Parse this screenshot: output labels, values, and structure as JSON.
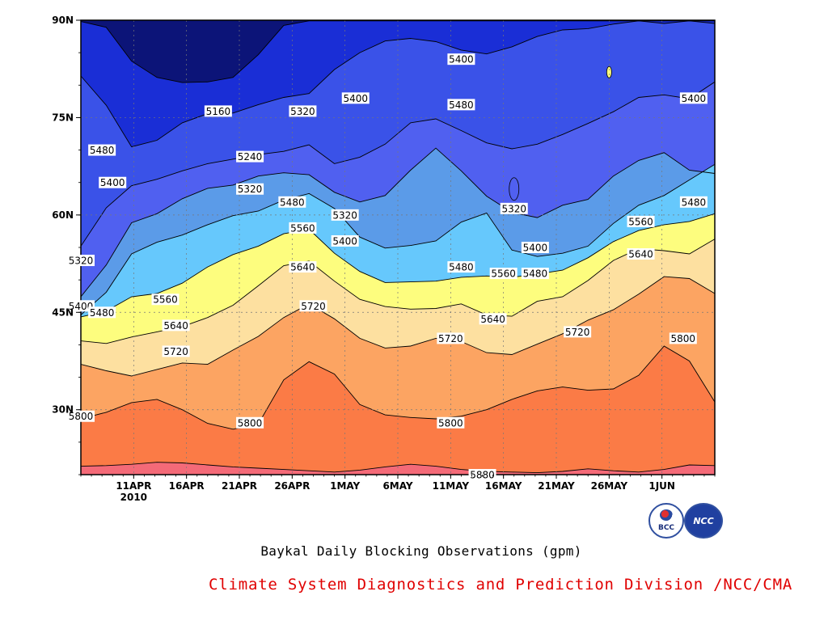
{
  "chart_data": {
    "type": "heatmap",
    "subtype": "filled contour (Hovmoller diagram)",
    "title": "Baykal Daily Blocking Observations (gpm)",
    "xlabel": "",
    "ylabel": "",
    "x_ticks": [
      "11APR",
      "16APR",
      "21APR",
      "26APR",
      "1MAY",
      "6MAY",
      "11MAY",
      "16MAY",
      "21MAY",
      "26MAY",
      "1JUN"
    ],
    "x_year_label": "2010",
    "x_range": [
      "2010-04-06",
      "2010-06-05"
    ],
    "y_ticks": [
      "30N",
      "45N",
      "60N",
      "75N",
      "90N"
    ],
    "y_range": [
      20,
      90
    ],
    "grid": true,
    "contour_levels": [
      5160,
      5240,
      5320,
      5400,
      5480,
      5560,
      5640,
      5720,
      5800,
      5880
    ],
    "fill_colors": [
      "#0c1478",
      "#1a2ed6",
      "#3a52e8",
      "#5060f0",
      "#5b9be8",
      "#66c8fc",
      "#fdfd7e",
      "#fde0a0",
      "#fca462",
      "#fb7b46",
      "#f46a78",
      "#e8324a"
    ],
    "band_boundaries_deg": [
      {
        "level": 5880,
        "lat": [
          21.3,
          21.4,
          21.6,
          21.9,
          21.8,
          21.5,
          21.2,
          21.0,
          20.8,
          20.6,
          20.4,
          20.7,
          21.2,
          21.6,
          21.3,
          20.8,
          20.5,
          20.4,
          20.3,
          20.5,
          20.9,
          20.6,
          20.4,
          20.8,
          21.5,
          21.4
        ]
      },
      {
        "level": 5800,
        "lat": [
          28.6,
          29.6,
          31.1,
          31.6,
          30.0,
          27.9,
          27.0,
          27.8,
          34.6,
          37.4,
          35.5,
          30.8,
          29.2,
          28.8,
          28.6,
          29.0,
          30.0,
          31.6,
          32.9,
          33.5,
          33.0,
          33.2,
          35.3,
          39.8,
          37.5,
          31.2
        ]
      },
      {
        "level": 5720,
        "lat": [
          37.0,
          36.0,
          35.2,
          36.2,
          37.2,
          37.0,
          39.2,
          41.3,
          44.2,
          46.3,
          44.0,
          41.0,
          39.5,
          39.8,
          41.0,
          40.5,
          38.8,
          38.5,
          40.1,
          41.7,
          43.8,
          45.4,
          47.8,
          50.5,
          50.2,
          47.9
        ]
      },
      {
        "level": 5640,
        "lat": [
          40.6,
          40.2,
          41.2,
          42.0,
          42.8,
          44.2,
          46.1,
          49.1,
          52.2,
          52.9,
          49.8,
          47.0,
          45.9,
          45.5,
          45.6,
          46.3,
          44.6,
          44.4,
          46.7,
          47.4,
          49.9,
          53.0,
          54.8,
          54.5,
          54.0,
          56.3
        ]
      },
      {
        "level": 5560,
        "lat": [
          44.3,
          45.2,
          47.4,
          47.9,
          49.5,
          52.0,
          53.9,
          55.2,
          57.1,
          57.8,
          54.1,
          51.3,
          49.6,
          49.7,
          49.8,
          50.4,
          50.6,
          50.4,
          50.9,
          51.5,
          53.4,
          55.9,
          57.6,
          58.5,
          59.0,
          60.2
        ]
      },
      {
        "level": 5480,
        "lat": [
          44.6,
          48.1,
          54.0,
          55.8,
          56.9,
          58.5,
          59.9,
          60.6,
          62.3,
          63.3,
          61.0,
          56.6,
          54.9,
          55.3,
          56.0,
          58.9,
          60.3,
          54.6,
          53.6,
          54.1,
          55.2,
          58.7,
          61.5,
          63.0,
          65.4,
          67.8
        ]
      },
      {
        "level": 5400,
        "lat": [
          47.4,
          52.3,
          58.8,
          60.2,
          62.5,
          64.1,
          64.6,
          66.0,
          66.5,
          66.2,
          63.5,
          62.0,
          63.0,
          66.9,
          70.3,
          66.8,
          62.9,
          60.4,
          59.6,
          61.5,
          62.4,
          66.0,
          68.4,
          69.6,
          66.9,
          66.4
        ]
      },
      {
        "level": 5320,
        "lat": [
          55.2,
          61.1,
          64.5,
          65.5,
          66.8,
          67.9,
          68.6,
          69.3,
          69.8,
          70.8,
          67.9,
          68.9,
          70.9,
          74.2,
          74.8,
          73.0,
          71.1,
          70.2,
          70.9,
          72.4,
          74.1,
          75.9,
          78.1,
          78.5,
          77.9,
          80.5
        ]
      },
      {
        "level": 5240,
        "lat": [
          81.4,
          76.9,
          70.5,
          71.5,
          74.2,
          75.6,
          75.7,
          77.0,
          78.1,
          78.7,
          82.4,
          85.0,
          86.8,
          87.2,
          86.7,
          85.4,
          84.8,
          85.9,
          87.5,
          88.5,
          88.7,
          89.4,
          89.9,
          89.5,
          89.9,
          89.5
        ]
      },
      {
        "level": 5160,
        "lat": [
          89.8,
          88.9,
          83.7,
          81.2,
          80.4,
          80.5,
          81.2,
          84.7,
          89.2,
          89.9,
          89.9,
          89.9,
          89.9,
          89.9,
          89.9,
          89.9,
          89.9,
          89.9,
          89.9,
          89.9,
          89.9,
          89.9,
          89.9,
          89.9,
          89.9,
          89.9
        ]
      }
    ],
    "contour_labels": [
      {
        "text": "5160",
        "date": "2010-04-19",
        "lat": 76
      },
      {
        "text": "5240",
        "date": "2010-04-22",
        "lat": 69
      },
      {
        "text": "5320",
        "date": "2010-04-22",
        "lat": 64
      },
      {
        "text": "5320",
        "date": "2010-04-27",
        "lat": 76
      },
      {
        "text": "5400",
        "date": "2010-05-02",
        "lat": 78
      },
      {
        "text": "5400",
        "date": "2010-05-12",
        "lat": 84
      },
      {
        "text": "5480",
        "date": "2010-05-12",
        "lat": 77
      },
      {
        "text": "5400",
        "date": "2010-06-03",
        "lat": 78
      },
      {
        "text": "5480",
        "date": "2010-04-08",
        "lat": 70
      },
      {
        "text": "5400",
        "date": "2010-04-09",
        "lat": 65
      },
      {
        "text": "5480",
        "date": "2010-04-26",
        "lat": 62
      },
      {
        "text": "5320",
        "date": "2010-05-01",
        "lat": 60
      },
      {
        "text": "5320",
        "date": "2010-05-17",
        "lat": 61
      },
      {
        "text": "5480",
        "date": "2010-06-03",
        "lat": 62
      },
      {
        "text": "5560",
        "date": "2010-04-27",
        "lat": 58
      },
      {
        "text": "5400",
        "date": "2010-05-01",
        "lat": 56
      },
      {
        "text": "5560",
        "date": "2010-05-29",
        "lat": 59
      },
      {
        "text": "5400",
        "date": "2010-05-19",
        "lat": 55
      },
      {
        "text": "5320",
        "date": "2010-04-06",
        "lat": 53
      },
      {
        "text": "5640",
        "date": "2010-04-27",
        "lat": 52
      },
      {
        "text": "5480",
        "date": "2010-05-12",
        "lat": 52
      },
      {
        "text": "5560",
        "date": "2010-05-16",
        "lat": 51
      },
      {
        "text": "5480",
        "date": "2010-05-19",
        "lat": 51
      },
      {
        "text": "5640",
        "date": "2010-05-29",
        "lat": 54
      },
      {
        "text": "5400",
        "date": "2010-04-06",
        "lat": 46
      },
      {
        "text": "5560",
        "date": "2010-04-14",
        "lat": 47
      },
      {
        "text": "5480",
        "date": "2010-04-08",
        "lat": 45
      },
      {
        "text": "5720",
        "date": "2010-04-28",
        "lat": 46
      },
      {
        "text": "5640",
        "date": "2010-04-15",
        "lat": 43
      },
      {
        "text": "5640",
        "date": "2010-05-15",
        "lat": 44
      },
      {
        "text": "5720",
        "date": "2010-05-23",
        "lat": 42
      },
      {
        "text": "5720",
        "date": "2010-05-11",
        "lat": 41
      },
      {
        "text": "5800",
        "date": "2010-06-02",
        "lat": 41
      },
      {
        "text": "5720",
        "date": "2010-04-15",
        "lat": 39
      },
      {
        "text": "5800",
        "date": "2010-04-06",
        "lat": 29
      },
      {
        "text": "5800",
        "date": "2010-04-22",
        "lat": 28
      },
      {
        "text": "5800",
        "date": "2010-05-11",
        "lat": 28
      },
      {
        "text": "5880",
        "date": "2010-05-14",
        "lat": 20
      }
    ],
    "closed_features": [
      {
        "type": "high",
        "level": 5480,
        "center": [
          "2010-05-26",
          82
        ],
        "note": "small yellow island"
      },
      {
        "type": "low",
        "level": 5320,
        "center": [
          "2010-05-17",
          64
        ],
        "note": "small blue island"
      }
    ]
  },
  "caption": {
    "title": "Baykal Daily Blocking Observations (gpm)",
    "footer": "Climate System Diagnostics and Prediction Division /NCC/CMA"
  },
  "logos": {
    "left": "BCC",
    "right": "NCC"
  }
}
